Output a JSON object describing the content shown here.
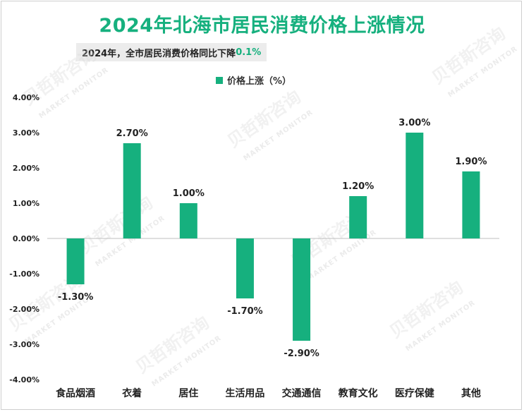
{
  "title": "2024年北海市居民消费价格上涨情况",
  "subtitle": {
    "prefix": "2024年，全市居民消费价格同比下降",
    "highlight": "0.1%"
  },
  "watermark": {
    "cn": "贝哲斯咨询",
    "en": "MARKET MONITOR"
  },
  "colors": {
    "accent": "#16b07e",
    "bar": "#16b07e"
  },
  "chart_data": {
    "type": "bar",
    "legend": "价格上涨（%）",
    "legend_position": "top-center",
    "categories": [
      "食品烟酒",
      "衣着",
      "居住",
      "生活用品",
      "交通通信",
      "教育文化",
      "医疗保健",
      "其他"
    ],
    "series": [
      {
        "name": "价格上涨（%）",
        "values": [
          -1.3,
          2.7,
          1.0,
          -1.7,
          -2.9,
          1.2,
          3.0,
          1.9
        ],
        "labels": [
          "-1.30%",
          "2.70%",
          "1.00%",
          "-1.70%",
          "-2.90%",
          "1.20%",
          "3.00%",
          "1.90%"
        ]
      }
    ],
    "ylim": [
      -4,
      4
    ],
    "yticks": [
      4,
      3,
      2,
      1,
      0,
      -1,
      -2,
      -3,
      -4
    ],
    "ytick_labels": [
      "4.00%",
      "3.00%",
      "2.00%",
      "1.00%",
      "0.00%",
      "-1.00%",
      "-2.00%",
      "-3.00%",
      "-4.00%"
    ],
    "grid": false
  }
}
